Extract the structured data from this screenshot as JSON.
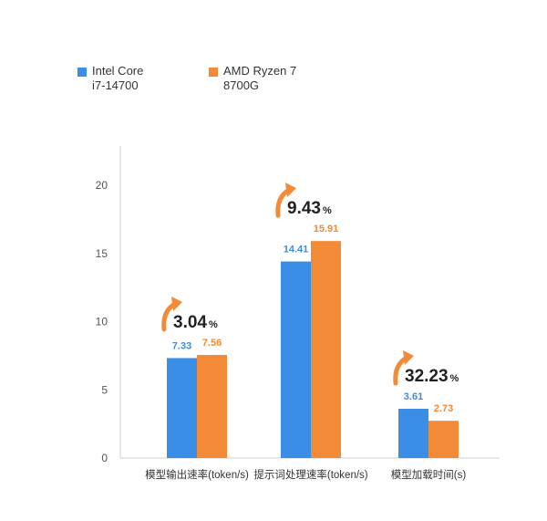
{
  "chart_data": {
    "type": "bar",
    "categories": [
      "模型输出速率(token/s)",
      "提示词处理速率(token/s)",
      "模型加载时间(s)"
    ],
    "series": [
      {
        "name": "Intel Core i7-14700",
        "values": [
          7.33,
          14.41,
          3.61
        ],
        "color": "#3a8ee6",
        "value_labels": [
          "7.33",
          "14.41",
          "3.61"
        ]
      },
      {
        "name": "AMD Ryzen 7 8700G",
        "values": [
          7.56,
          15.91,
          2.73
        ],
        "color": "#f28a38",
        "value_labels": [
          "7.56",
          "15.91",
          "2.73"
        ]
      }
    ],
    "ylim": [
      0,
      20
    ],
    "yticks": [
      "0",
      "5",
      "10",
      "15",
      "20"
    ],
    "annotations": [
      {
        "value": "3.04",
        "unit": "%"
      },
      {
        "value": "9.43",
        "unit": "%"
      },
      {
        "value": "32.23",
        "unit": "%"
      }
    ],
    "legend": {
      "placement": "top-left",
      "items": [
        {
          "line1": "Intel Core",
          "line2": "i7-14700"
        },
        {
          "line1": "AMD Ryzen 7",
          "line2": "8700G"
        }
      ]
    },
    "arrow_color": "#f28a38",
    "grid": false
  }
}
